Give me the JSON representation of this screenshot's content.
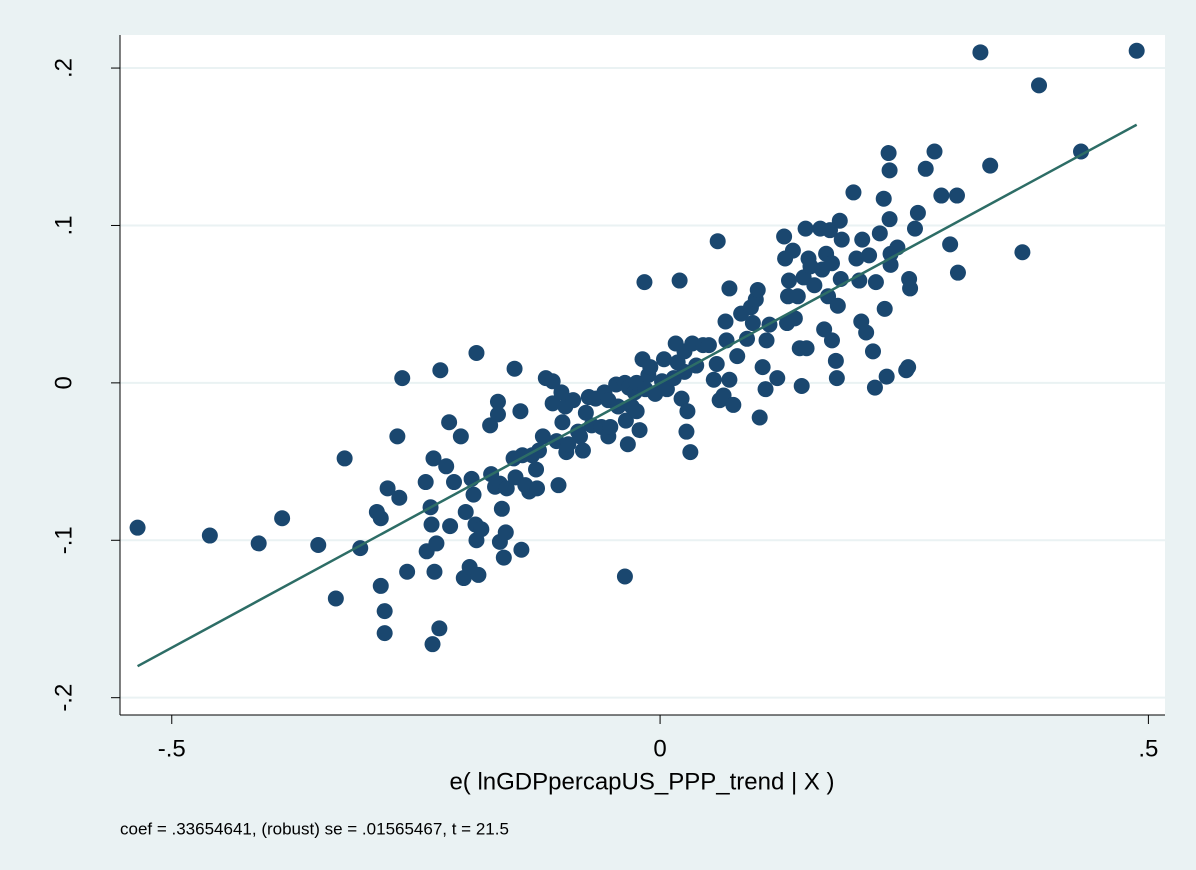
{
  "chart_data": {
    "type": "scatter",
    "x_label": "e( lnGDPpercapUS_PPP_trend | X )",
    "note": "coef = .33654641, (robust) se = .01565467, t = 21.5",
    "color": "#1a476f",
    "x": [
      -0.535,
      -0.461,
      -0.411,
      -0.387,
      -0.35,
      -0.332,
      -0.323,
      -0.307,
      -0.29,
      -0.286,
      -0.286,
      -0.282,
      -0.282,
      -0.279,
      -0.269,
      -0.267,
      -0.264,
      -0.259,
      -0.24,
      -0.239,
      -0.235,
      -0.234,
      -0.233,
      -0.232,
      -0.231,
      -0.229,
      -0.226,
      -0.225,
      -0.219,
      -0.216,
      -0.215,
      -0.211,
      -0.204,
      -0.201,
      -0.199,
      -0.195,
      -0.193,
      -0.191,
      -0.189,
      -0.188,
      -0.188,
      -0.186,
      -0.183,
      -0.174,
      -0.173,
      -0.169,
      -0.166,
      -0.166,
      -0.164,
      -0.164,
      -0.162,
      -0.16,
      -0.158,
      -0.157,
      -0.15,
      -0.149,
      -0.148,
      -0.143,
      -0.142,
      -0.141,
      -0.138,
      -0.134,
      -0.131,
      -0.127,
      -0.126,
      -0.124,
      -0.12,
      -0.117,
      -0.11,
      -0.11,
      -0.106,
      -0.104,
      -0.101,
      -0.1,
      -0.097,
      -0.096,
      -0.094,
      -0.089,
      -0.084,
      -0.082,
      -0.079,
      -0.076,
      -0.073,
      -0.07,
      -0.066,
      -0.06,
      -0.057,
      -0.053,
      -0.053,
      -0.051,
      -0.045,
      -0.043,
      -0.036,
      -0.036,
      -0.035,
      -0.033,
      -0.032,
      -0.029,
      -0.026,
      -0.024,
      -0.024,
      -0.021,
      -0.018,
      -0.016,
      -0.015,
      -0.012,
      -0.01,
      -0.005,
      0.002,
      0.004,
      0.007,
      0.014,
      0.016,
      0.018,
      0.02,
      0.022,
      0.025,
      0.025,
      0.027,
      0.028,
      0.031,
      0.033,
      0.037,
      0.044,
      0.05,
      0.055,
      0.058,
      0.059,
      0.061,
      0.065,
      0.067,
      0.068,
      0.071,
      0.071,
      0.075,
      0.079,
      0.083,
      0.089,
      0.093,
      0.095,
      0.098,
      0.1,
      0.102,
      0.105,
      0.108,
      0.109,
      0.112,
      0.12,
      0.127,
      0.128,
      0.13,
      0.131,
      0.132,
      0.136,
      0.138,
      0.141,
      0.143,
      0.145,
      0.147,
      0.149,
      0.15,
      0.152,
      0.154,
      0.158,
      0.164,
      0.166,
      0.168,
      0.17,
      0.172,
      0.174,
      0.176,
      0.176,
      0.18,
      0.181,
      0.182,
      0.184,
      0.185,
      0.186,
      0.198,
      0.201,
      0.204,
      0.206,
      0.207,
      0.211,
      0.214,
      0.218,
      0.22,
      0.221,
      0.225,
      0.229,
      0.23,
      0.232,
      0.234,
      0.235,
      0.235,
      0.236,
      0.236,
      0.243,
      0.252,
      0.254,
      0.255,
      0.256,
      0.261,
      0.264,
      0.272,
      0.281,
      0.288,
      0.297,
      0.304,
      0.305,
      0.328,
      0.338,
      0.371,
      0.388,
      0.431,
      0.488
    ],
    "y": [
      -0.092,
      -0.097,
      -0.102,
      -0.086,
      -0.103,
      -0.137,
      -0.048,
      -0.105,
      -0.082,
      -0.086,
      -0.129,
      -0.145,
      -0.159,
      -0.067,
      -0.034,
      -0.073,
      0.003,
      -0.12,
      -0.063,
      -0.107,
      -0.079,
      -0.09,
      -0.166,
      -0.048,
      -0.12,
      -0.102,
      -0.156,
      0.008,
      -0.053,
      -0.025,
      -0.091,
      -0.063,
      -0.034,
      -0.124,
      -0.082,
      -0.117,
      -0.061,
      -0.071,
      -0.09,
      0.019,
      -0.1,
      -0.122,
      -0.093,
      -0.027,
      -0.058,
      -0.066,
      -0.02,
      -0.012,
      -0.064,
      -0.101,
      -0.08,
      -0.111,
      -0.095,
      -0.067,
      -0.048,
      0.009,
      -0.06,
      -0.018,
      -0.106,
      -0.046,
      -0.065,
      -0.069,
      -0.046,
      -0.055,
      -0.067,
      -0.043,
      -0.034,
      0.003,
      -0.013,
      0.001,
      -0.037,
      -0.065,
      -0.006,
      -0.025,
      -0.015,
      -0.044,
      -0.039,
      -0.011,
      -0.031,
      -0.034,
      -0.043,
      -0.019,
      -0.009,
      -0.027,
      -0.01,
      -0.028,
      -0.006,
      -0.034,
      -0.011,
      -0.028,
      -0.001,
      -0.015,
      0.0,
      -0.123,
      -0.024,
      -0.039,
      -0.003,
      -0.015,
      -0.006,
      0.0,
      -0.018,
      -0.03,
      0.015,
      0.064,
      -0.004,
      0.005,
      0.01,
      -0.007,
      0.001,
      0.015,
      -0.004,
      0.003,
      0.025,
      0.013,
      0.065,
      -0.01,
      0.007,
      0.02,
      -0.031,
      -0.018,
      -0.044,
      0.025,
      0.011,
      0.024,
      0.024,
      0.002,
      0.012,
      0.09,
      -0.011,
      -0.008,
      0.039,
      0.027,
      0.06,
      0.002,
      -0.014,
      0.017,
      0.044,
      0.028,
      0.048,
      0.038,
      0.053,
      0.059,
      -0.022,
      0.01,
      -0.004,
      0.027,
      0.037,
      0.003,
      0.093,
      0.079,
      0.038,
      0.055,
      0.065,
      0.084,
      0.041,
      0.055,
      0.022,
      -0.002,
      0.067,
      0.098,
      0.022,
      0.079,
      0.074,
      0.062,
      0.098,
      0.072,
      0.034,
      0.082,
      0.055,
      0.097,
      0.027,
      0.076,
      0.014,
      0.003,
      0.049,
      0.103,
      0.066,
      0.091,
      0.121,
      0.079,
      0.065,
      0.039,
      0.091,
      0.032,
      0.081,
      0.02,
      -0.003,
      0.064,
      0.095,
      0.117,
      0.047,
      0.004,
      0.146,
      0.135,
      0.104,
      0.082,
      0.075,
      0.086,
      0.008,
      0.01,
      0.066,
      0.06,
      0.098,
      0.108,
      0.136,
      0.147,
      0.119,
      0.088,
      0.119,
      0.07,
      0.21,
      0.138,
      0.083,
      0.189,
      0.147,
      0.211
    ],
    "fit": {
      "color": "#2d6d66",
      "x": [
        -0.535,
        0.488
      ],
      "y": [
        -0.18,
        0.164
      ]
    },
    "xlim": [
      -0.553,
      0.517
    ],
    "ylim": [
      -0.211,
      0.221
    ],
    "xticks": [
      {
        "value": -0.5,
        "label": "-.5"
      },
      0,
      {
        "value": 0.5,
        "label": ".5"
      }
    ],
    "yticks": [
      {
        "value": -0.2,
        "label": "-.2"
      },
      {
        "value": -0.1,
        "label": "-.1"
      },
      0,
      {
        "value": 0.1,
        "label": ".1"
      },
      {
        "value": 0.2,
        "label": ".2"
      }
    ],
    "grid": true
  }
}
